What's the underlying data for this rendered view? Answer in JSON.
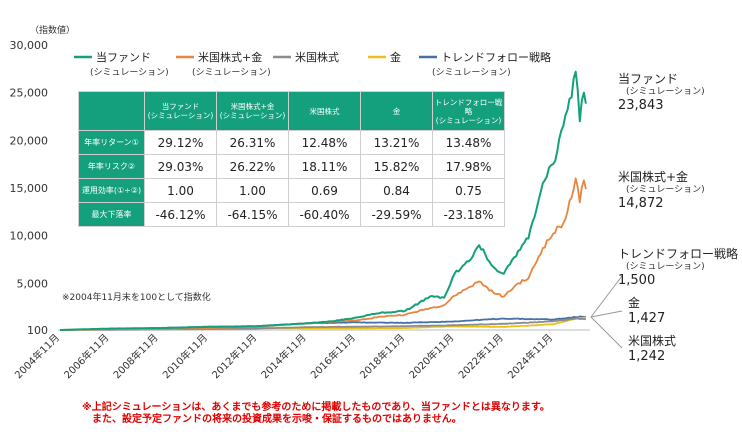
{
  "chart_data": {
    "type": "line",
    "y_unit": "（指数値）",
    "yticks": [
      "30,000",
      "25,000",
      "20,000",
      "15,000",
      "10,000",
      "5,000",
      "100"
    ],
    "ylim": [
      100,
      30000
    ],
    "xticks": [
      "2004年11月",
      "2006年11月",
      "2008年11月",
      "2010年11月",
      "2012年11月",
      "2014年11月",
      "2016年11月",
      "2018年11月",
      "2020年11月",
      "2022年11月",
      "2024年11月"
    ],
    "xlim": [
      "2004-11",
      "2026-04"
    ],
    "base_note": "※2004年11月末を100として指数化",
    "grid": false,
    "legend_position": "top",
    "series": [
      {
        "name": "当ファンド",
        "subname": "(シミュレーション)",
        "color": "#14a07c",
        "end_label": "当ファンド",
        "end_sub": "(シミュレーション)",
        "end_value": "23,843",
        "points": [
          [
            "2004-11",
            100
          ],
          [
            "2006-11",
            250
          ],
          [
            "2008-11",
            300
          ],
          [
            "2010-11",
            420
          ],
          [
            "2012-11",
            500
          ],
          [
            "2014-11",
            800
          ],
          [
            "2015-11",
            1000
          ],
          [
            "2016-11",
            1400
          ],
          [
            "2017-11",
            1900
          ],
          [
            "2018-11",
            2100
          ],
          [
            "2019-11",
            3600
          ],
          [
            "2020-06",
            3500
          ],
          [
            "2020-11",
            6000
          ],
          [
            "2021-06",
            7300
          ],
          [
            "2021-11",
            9000
          ],
          [
            "2022-06",
            6700
          ],
          [
            "2022-11",
            6000
          ],
          [
            "2023-06",
            8400
          ],
          [
            "2023-11",
            9700
          ],
          [
            "2024-06",
            15500
          ],
          [
            "2024-11",
            17500
          ],
          [
            "2025-04",
            21500
          ],
          [
            "2025-08",
            24500
          ],
          [
            "2025-10",
            27200
          ],
          [
            "2025-12",
            22000
          ],
          [
            "2026-02",
            25000
          ],
          [
            "2026-03",
            23843
          ]
        ]
      },
      {
        "name": "米国株式+金",
        "subname": "(シミュレーション)",
        "color": "#e8853f",
        "end_label": "米国株式+金",
        "end_sub": "(シミュレーション)",
        "end_value": "14,872",
        "points": [
          [
            "2004-11",
            100
          ],
          [
            "2006-11",
            200
          ],
          [
            "2008-11",
            180
          ],
          [
            "2010-11",
            300
          ],
          [
            "2012-11",
            450
          ],
          [
            "2014-11",
            800
          ],
          [
            "2016-11",
            1100
          ],
          [
            "2017-11",
            1500
          ],
          [
            "2018-11",
            1700
          ],
          [
            "2019-11",
            2400
          ],
          [
            "2020-06",
            2700
          ],
          [
            "2020-11",
            3700
          ],
          [
            "2021-11",
            5200
          ],
          [
            "2022-06",
            4000
          ],
          [
            "2022-11",
            3600
          ],
          [
            "2023-06",
            5000
          ],
          [
            "2023-11",
            5500
          ],
          [
            "2024-06",
            8700
          ],
          [
            "2024-11",
            10200
          ],
          [
            "2025-04",
            11300
          ],
          [
            "2025-08",
            14000
          ],
          [
            "2025-10",
            16000
          ],
          [
            "2025-12",
            13500
          ],
          [
            "2026-02",
            15800
          ],
          [
            "2026-03",
            14872
          ]
        ]
      },
      {
        "name": "米国株式",
        "subname": "",
        "color": "#8c8c8c",
        "end_label": "米国株式",
        "end_sub": "",
        "end_value": "1,242",
        "points": [
          [
            "2004-11",
            100
          ],
          [
            "2008-11",
            150
          ],
          [
            "2010-11",
            200
          ],
          [
            "2012-11",
            250
          ],
          [
            "2014-11",
            400
          ],
          [
            "2016-11",
            450
          ],
          [
            "2018-11",
            500
          ],
          [
            "2020-11",
            600
          ],
          [
            "2022-11",
            750
          ],
          [
            "2024-11",
            1000
          ],
          [
            "2025-10",
            1300
          ],
          [
            "2026-03",
            1242
          ]
        ]
      },
      {
        "name": "金",
        "subname": "",
        "color": "#e8c21a",
        "end_label": "金",
        "end_sub": "",
        "end_value": "1,427",
        "points": [
          [
            "2004-11",
            100
          ],
          [
            "2008-11",
            200
          ],
          [
            "2011-08",
            450
          ],
          [
            "2013-06",
            300
          ],
          [
            "2015-11",
            270
          ],
          [
            "2018-11",
            310
          ],
          [
            "2020-08",
            480
          ],
          [
            "2022-11",
            430
          ],
          [
            "2024-11",
            700
          ],
          [
            "2025-10",
            1300
          ],
          [
            "2026-03",
            1427
          ]
        ]
      },
      {
        "name": "トレンドフォロー戦略",
        "subname": "(シミュレーション)",
        "color": "#4670a8",
        "end_label": "トレンドフォロー戦略",
        "end_sub": "(シミュレーション)",
        "end_value": "1,500",
        "points": [
          [
            "2004-11",
            100
          ],
          [
            "2008-11",
            300
          ],
          [
            "2010-11",
            450
          ],
          [
            "2012-11",
            500
          ],
          [
            "2014-11",
            800
          ],
          [
            "2016-11",
            900
          ],
          [
            "2018-11",
            850
          ],
          [
            "2020-11",
            1000
          ],
          [
            "2022-11",
            1300
          ],
          [
            "2024-11",
            1200
          ],
          [
            "2025-10",
            1450
          ],
          [
            "2026-03",
            1500
          ]
        ]
      }
    ]
  },
  "table": {
    "headers": [
      {
        "main": "当ファンド",
        "sub": "(シミュレーション)"
      },
      {
        "main": "米国株式+金",
        "sub": "(シミュレーション)"
      },
      {
        "main": "米国株式",
        "sub": ""
      },
      {
        "main": "金",
        "sub": ""
      },
      {
        "main": "トレンドフォロー戦略",
        "sub": "(シミュレーション)"
      }
    ],
    "rows": [
      {
        "label": "年率リターン①",
        "values": [
          "29.12%",
          "26.31%",
          "12.48%",
          "13.21%",
          "13.48%"
        ]
      },
      {
        "label": "年率リスク②",
        "values": [
          "29.03%",
          "26.22%",
          "18.11%",
          "15.82%",
          "17.98%"
        ]
      },
      {
        "label": "運用効率(①÷②)",
        "values": [
          "1.00",
          "1.00",
          "0.69",
          "0.84",
          "0.75"
        ]
      },
      {
        "label": "最大下落率",
        "values": [
          "-46.12%",
          "-64.15%",
          "-60.40%",
          "-29.59%",
          "-23.18%"
        ]
      }
    ]
  },
  "disclaimer": {
    "line1": "※上記シミュレーションは、あくまでも参考のために掲載したものであり、当ファンドとは異なります。",
    "line2": "また、設定予定ファンドの将来の投資成果を示唆・保証するものではありません。"
  }
}
